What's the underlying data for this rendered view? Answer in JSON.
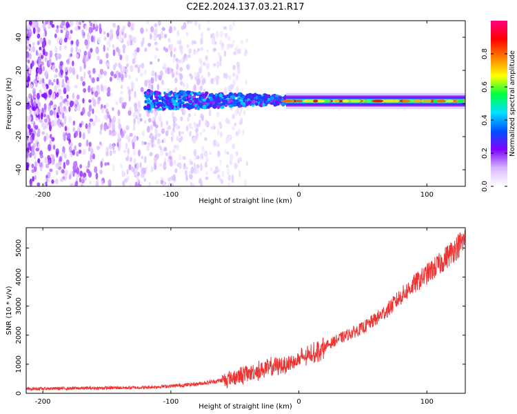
{
  "title": "C2E2.2024.137.03.21.R17",
  "chart_data": [
    {
      "type": "heatmap",
      "xlabel": "Height of straight line (km)",
      "ylabel": "Frequency (Hz)",
      "xlim": [
        -213,
        130
      ],
      "ylim": [
        -50,
        50
      ],
      "xticks": [
        -200,
        -100,
        0,
        100
      ],
      "yticks": [
        -40,
        -20,
        0,
        20,
        40
      ],
      "colorbar": {
        "label": "Normalized spectral amplitude",
        "range": [
          0,
          1
        ],
        "ticks": [
          0.0,
          0.2,
          0.4,
          0.6,
          0.8
        ],
        "colormap": [
          "#ffffff",
          "#d8b8ff",
          "#8000ff",
          "#0050ff",
          "#00e0ff",
          "#00ff40",
          "#ffff00",
          "#ff8000",
          "#ff0000",
          "#ff0080"
        ]
      },
      "features": [
        {
          "name": "broadband",
          "x_from": -213,
          "x_to": -60,
          "y_from": -50,
          "y_to": 50,
          "amplitude": 0.12
        },
        {
          "name": "narrowing_band",
          "x_from": -120,
          "x_to": -5,
          "center_y": 2,
          "half_width": 6,
          "amplitude": 0.3
        },
        {
          "name": "tone",
          "x_from": -10,
          "x_to": 130,
          "center_y": 1.5,
          "half_width": 1.5,
          "amplitude": 0.85
        }
      ]
    },
    {
      "type": "line",
      "xlabel": "Height of straight line (km)",
      "ylabel": "SNR (10 * v/v)",
      "xlim": [
        -213,
        130
      ],
      "ylim": [
        0,
        5700
      ],
      "xticks": [
        -200,
        -100,
        0,
        100
      ],
      "yticks": [
        0,
        1000,
        2000,
        3000,
        4000,
        5000
      ],
      "color": "#ee3333",
      "series": [
        {
          "x": [
            -213,
            -200,
            -180,
            -160,
            -140,
            -120,
            -100,
            -90,
            -80,
            -70,
            -60,
            -50,
            -40,
            -30,
            -20,
            -10,
            0,
            10,
            20,
            30,
            40,
            50,
            60,
            70,
            80,
            90,
            100,
            110,
            120,
            130
          ],
          "values": [
            150,
            160,
            170,
            180,
            190,
            200,
            250,
            280,
            320,
            380,
            450,
            560,
            680,
            800,
            900,
            1000,
            1150,
            1350,
            1600,
            1850,
            2050,
            2250,
            2550,
            2900,
            3350,
            3750,
            4100,
            4450,
            4900,
            5300
          ]
        }
      ]
    }
  ]
}
